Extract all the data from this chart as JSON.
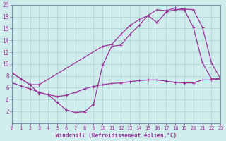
{
  "xlabel": "Windchill (Refroidissement éolien,°C)",
  "bg_color": "#d0ecec",
  "grid_color": "#a8d4d4",
  "line_color": "#993399",
  "spine_color": "#7799aa",
  "xlim": [
    0,
    23
  ],
  "ylim": [
    0,
    20
  ],
  "xticks": [
    0,
    1,
    2,
    3,
    4,
    5,
    6,
    7,
    8,
    9,
    10,
    11,
    12,
    13,
    14,
    15,
    16,
    17,
    18,
    19,
    20,
    21,
    22,
    23
  ],
  "yticks": [
    2,
    4,
    6,
    8,
    10,
    12,
    14,
    16,
    18,
    20
  ],
  "series": [
    {
      "x": [
        0,
        1,
        2,
        3,
        10,
        11,
        12,
        13,
        14,
        15,
        16,
        17,
        18,
        19,
        20,
        21,
        22,
        23
      ],
      "y": [
        8.5,
        7.5,
        6.5,
        6.5,
        13.0,
        13.3,
        15.0,
        16.5,
        17.5,
        18.2,
        19.2,
        19.0,
        19.5,
        19.3,
        19.2,
        16.2,
        10.2,
        7.5
      ]
    },
    {
      "x": [
        0,
        1,
        2,
        3,
        4,
        5,
        6,
        7,
        8,
        9,
        10,
        11,
        12,
        13,
        14,
        15,
        16,
        17,
        18,
        19,
        20,
        21,
        22,
        23
      ],
      "y": [
        8.5,
        7.5,
        6.5,
        5.0,
        4.8,
        3.5,
        2.2,
        1.8,
        1.9,
        3.2,
        9.8,
        13.0,
        13.2,
        15.0,
        16.5,
        18.2,
        17.0,
        18.8,
        19.2,
        19.2,
        16.2,
        10.2,
        7.5,
        7.5
      ]
    },
    {
      "x": [
        0,
        1,
        2,
        3,
        4,
        5,
        6,
        7,
        8,
        9,
        10,
        11,
        12,
        13,
        14,
        15,
        16,
        17,
        18,
        19,
        20,
        21,
        22,
        23
      ],
      "y": [
        6.8,
        6.3,
        5.8,
        5.2,
        4.8,
        4.5,
        4.7,
        5.2,
        5.8,
        6.2,
        6.5,
        6.7,
        6.8,
        7.0,
        7.2,
        7.3,
        7.3,
        7.1,
        6.9,
        6.8,
        6.8,
        7.3,
        7.3,
        7.5
      ]
    }
  ]
}
